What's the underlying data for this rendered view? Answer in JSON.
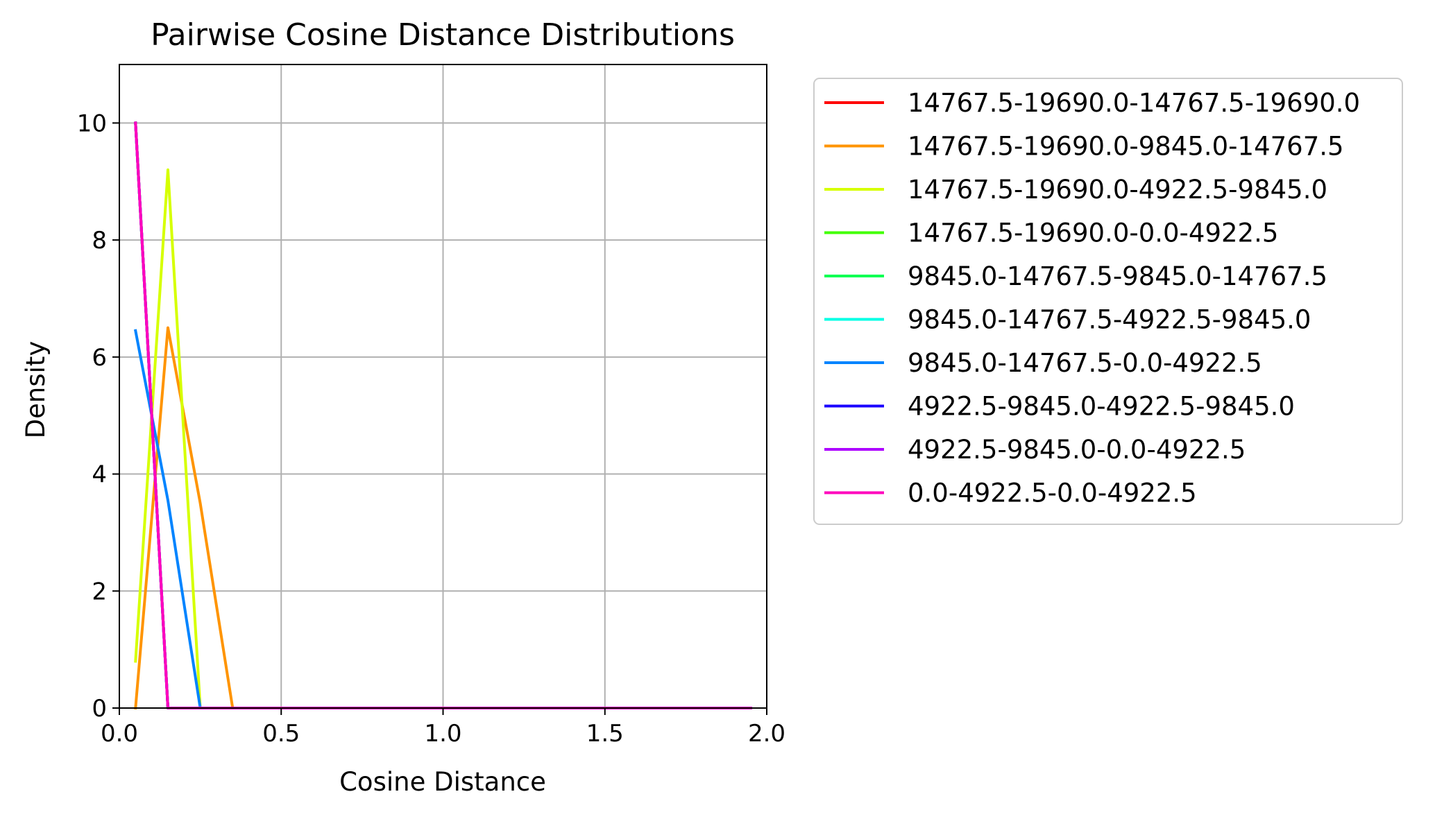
{
  "chart_data": {
    "type": "line",
    "title": "Pairwise Cosine Distance Distributions",
    "xlabel": "Cosine Distance",
    "ylabel": "Density",
    "xlim": [
      0,
      2.0
    ],
    "ylim": [
      0,
      11
    ],
    "xticks": [
      "0.0",
      "0.5",
      "1.0",
      "1.5",
      "2.0"
    ],
    "yticks": [
      "0",
      "2",
      "4",
      "6",
      "8",
      "10"
    ],
    "xtick_values": [
      0,
      0.5,
      1.0,
      1.5,
      2.0
    ],
    "ytick_values": [
      0,
      2,
      4,
      6,
      8,
      10
    ],
    "grid": true,
    "legend_position": "outside right, top",
    "x": [
      0.05,
      0.15,
      0.25,
      0.35,
      0.45,
      0.55,
      0.65,
      0.75,
      0.85,
      0.95,
      1.05,
      1.15,
      1.25,
      1.35,
      1.45,
      1.55,
      1.65,
      1.75,
      1.85,
      1.95
    ],
    "series": [
      {
        "name": "14767.5-19690.0-14767.5-19690.0",
        "color": "#ff0000",
        "values": [
          10,
          0,
          0,
          0,
          0,
          0,
          0,
          0,
          0,
          0,
          0,
          0,
          0,
          0,
          0,
          0,
          0,
          0,
          0,
          0
        ]
      },
      {
        "name": "14767.5-19690.0-9845.0-14767.5",
        "color": "#ff9400",
        "values": [
          0,
          6.5,
          3.5,
          0,
          0,
          0,
          0,
          0,
          0,
          0,
          0,
          0,
          0,
          0,
          0,
          0,
          0,
          0,
          0,
          0
        ]
      },
      {
        "name": "14767.5-19690.0-4922.5-9845.0",
        "color": "#d6ff00",
        "values": [
          0.8,
          9.2,
          0,
          0,
          0,
          0,
          0,
          0,
          0,
          0,
          0,
          0,
          0,
          0,
          0,
          0,
          0,
          0,
          0,
          0
        ]
      },
      {
        "name": "14767.5-19690.0-0.0-4922.5",
        "color": "#42ff00",
        "values": [
          10,
          0,
          0,
          0,
          0,
          0,
          0,
          0,
          0,
          0,
          0,
          0,
          0,
          0,
          0,
          0,
          0,
          0,
          0,
          0
        ]
      },
      {
        "name": "9845.0-14767.5-9845.0-14767.5",
        "color": "#00ff52",
        "values": [
          10,
          0,
          0,
          0,
          0,
          0,
          0,
          0,
          0,
          0,
          0,
          0,
          0,
          0,
          0,
          0,
          0,
          0,
          0,
          0
        ]
      },
      {
        "name": "9845.0-14767.5-4922.5-9845.0",
        "color": "#00ffe5",
        "values": [
          10,
          0,
          0,
          0,
          0,
          0,
          0,
          0,
          0,
          0,
          0,
          0,
          0,
          0,
          0,
          0,
          0,
          0,
          0,
          0
        ]
      },
      {
        "name": "9845.0-14767.5-0.0-4922.5",
        "color": "#0084ff",
        "values": [
          6.45,
          3.55,
          0,
          0,
          0,
          0,
          0,
          0,
          0,
          0,
          0,
          0,
          0,
          0,
          0,
          0,
          0,
          0,
          0,
          0
        ]
      },
      {
        "name": "4922.5-9845.0-4922.5-9845.0",
        "color": "#1a00ff",
        "values": [
          10,
          0,
          0,
          0,
          0,
          0,
          0,
          0,
          0,
          0,
          0,
          0,
          0,
          0,
          0,
          0,
          0,
          0,
          0,
          0
        ]
      },
      {
        "name": "4922.5-9845.0-0.0-4922.5",
        "color": "#ad00ff",
        "values": [
          10,
          0,
          0,
          0,
          0,
          0,
          0,
          0,
          0,
          0,
          0,
          0,
          0,
          0,
          0,
          0,
          0,
          0,
          0,
          0
        ]
      },
      {
        "name": "0.0-4922.5-0.0-4922.5",
        "color": "#ff00bd",
        "values": [
          10,
          0,
          0,
          0,
          0,
          0,
          0,
          0,
          0,
          0,
          0,
          0,
          0,
          0,
          0,
          0,
          0,
          0,
          0,
          0
        ]
      }
    ]
  }
}
